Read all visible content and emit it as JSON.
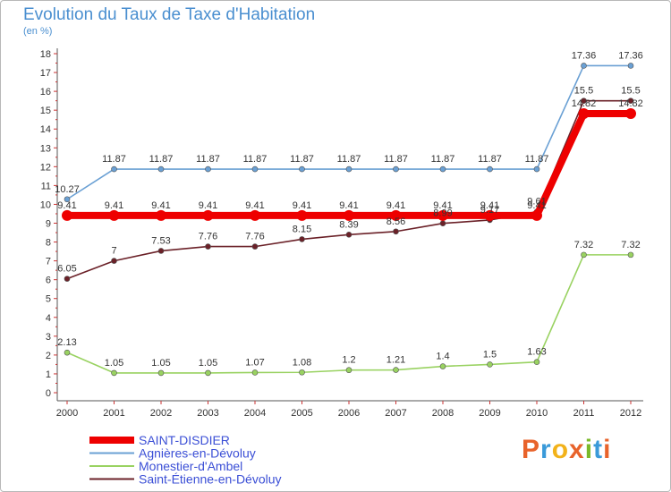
{
  "header": {
    "title": "Evolution du Taux de Taxe d'Habitation",
    "subtitle": "(en %)"
  },
  "logo": {
    "text": "Proxiti",
    "colors": [
      "#e8632b",
      "#3a9ad9",
      "#f2b21a",
      "#e8632b",
      "#7ab929",
      "#3a9ad9",
      "#e8632b"
    ]
  },
  "chart_data": {
    "type": "line",
    "title": "Evolution du Taux de Taxe d'Habitation",
    "subtitle": "(en %)",
    "xlabel": "",
    "ylabel": "",
    "x": [
      "2000",
      "2001",
      "2002",
      "2003",
      "2004",
      "2005",
      "2006",
      "2007",
      "2008",
      "2009",
      "2010",
      "2011",
      "2012"
    ],
    "ylim": [
      0,
      18
    ],
    "yticks": [
      0,
      1,
      2,
      3,
      4,
      5,
      6,
      7,
      8,
      9,
      10,
      11,
      12,
      13,
      14,
      15,
      16,
      17,
      18
    ],
    "grid": false,
    "legend_position": "bottom-left",
    "series": [
      {
        "name": "Agnières-en-Dévoluy",
        "color": "#6aa0d4",
        "values": [
          10.27,
          11.87,
          11.87,
          11.87,
          11.87,
          11.87,
          11.87,
          11.87,
          11.87,
          11.87,
          11.87,
          17.36,
          17.36
        ],
        "labels": [
          "10.27",
          "11.87",
          "11.87",
          "11.87",
          "11.87",
          "11.87",
          "11.87",
          "11.87",
          "11.87",
          "11.87",
          "11.87",
          "17.36",
          "17.36"
        ]
      },
      {
        "name": "Monestier-d'Ambel",
        "color": "#99d261",
        "values": [
          2.13,
          1.05,
          1.05,
          1.05,
          1.07,
          1.08,
          1.2,
          1.21,
          1.4,
          1.5,
          1.63,
          7.32,
          7.32
        ],
        "labels": [
          "2.13",
          "1.05",
          "1.05",
          "1.05",
          "1.07",
          "1.08",
          "1.2",
          "1.21",
          "1.4",
          "1.5",
          "1.63",
          "7.32",
          "7.32"
        ]
      },
      {
        "name": "Saint-Étienne-en-Dévoluy",
        "color": "#6b2128",
        "values": [
          6.05,
          7,
          7.53,
          7.76,
          7.76,
          8.15,
          8.39,
          8.56,
          8.99,
          9.17,
          9.61,
          15.5,
          15.5
        ],
        "labels": [
          "6.05",
          "7",
          "7.53",
          "7.76",
          "7.76",
          "8.15",
          "8.39",
          "8.56",
          "8.99",
          "9.17",
          "9.61",
          "15.5",
          "15.5"
        ]
      },
      {
        "name": "SAINT-DISDIER",
        "color": "#ee0000",
        "values": [
          9.41,
          9.41,
          9.41,
          9.41,
          9.41,
          9.41,
          9.41,
          9.41,
          9.41,
          9.41,
          9.41,
          14.82,
          14.82
        ],
        "labels": [
          "9.41",
          "9.41",
          "9.41",
          "9.41",
          "9.41",
          "9.41",
          "9.41",
          "9.41",
          "9.41",
          "9.41",
          "9.41",
          "14.82",
          "14.82"
        ]
      }
    ],
    "legend": [
      {
        "name": "SAINT-DISDIER",
        "color": "#ee0000"
      },
      {
        "name": "Agnières-en-Dévoluy",
        "color": "#6aa0d4"
      },
      {
        "name": "Monestier-d'Ambel",
        "color": "#99d261"
      },
      {
        "name": "Saint-Étienne-en-Dévoluy",
        "color": "#6b2128"
      }
    ]
  }
}
